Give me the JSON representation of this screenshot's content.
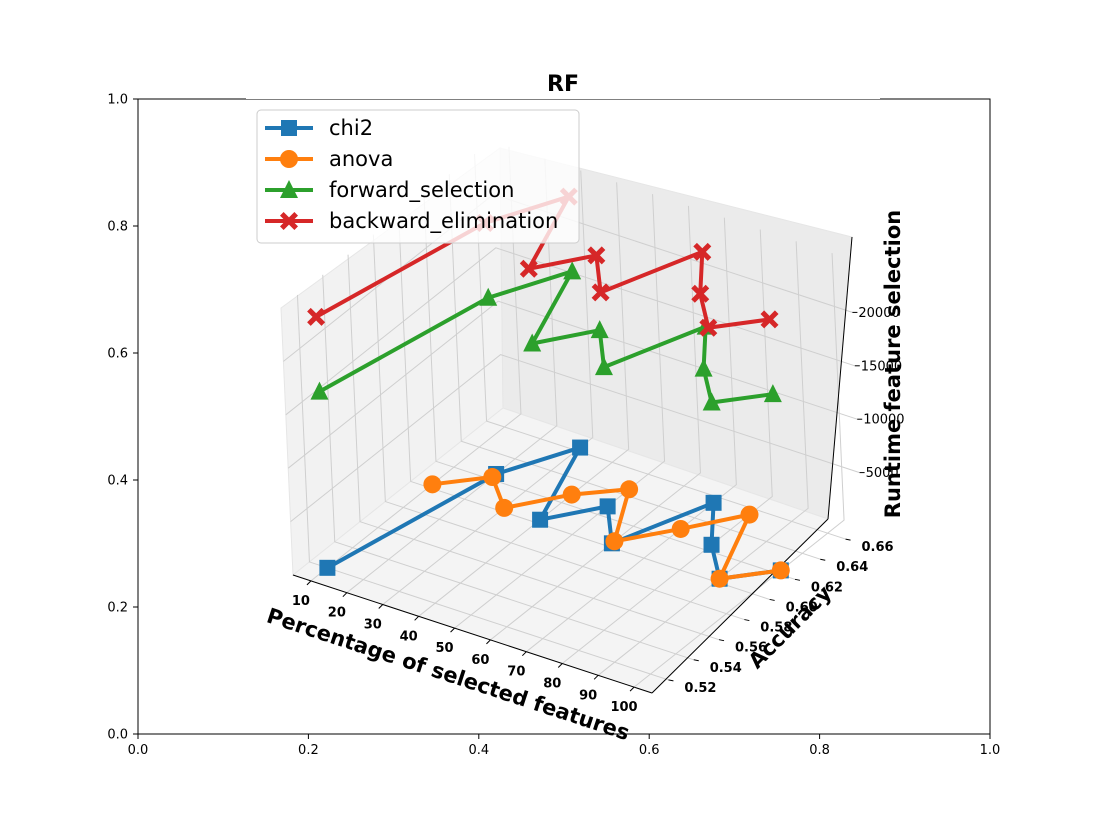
{
  "chart_data": {
    "type": "line3d",
    "title": "RF",
    "xlabel": "Percentage of selected features",
    "ylabel": "Accuracy",
    "zlabel": "Runtime feature selection",
    "x_ticks": [
      "10",
      "20",
      "30",
      "40",
      "50",
      "60",
      "70",
      "80",
      "90",
      "100"
    ],
    "y_ticks": [
      "0.52",
      "0.54",
      "0.56",
      "0.58",
      "0.60",
      "0.62",
      "0.64",
      "0.66"
    ],
    "z_ticks": [
      "5000",
      "10000",
      "15000",
      "20000"
    ],
    "outer_x_ticks": [
      "0.0",
      "0.2",
      "0.4",
      "0.6",
      "0.8",
      "1.0"
    ],
    "outer_y_ticks": [
      "0.0",
      "0.2",
      "0.4",
      "0.6",
      "0.8",
      "1.0"
    ],
    "legend_position": "upper-left",
    "grid": true,
    "series": [
      {
        "name": "chi2",
        "color": "#1f77b4",
        "marker": "square",
        "x": [
          10,
          20,
          30,
          40,
          50,
          60,
          70,
          80,
          90,
          100
        ],
        "y": [
          0.52,
          0.625,
          0.663,
          0.603,
          0.628,
          0.603,
          0.655,
          0.625,
          0.603,
          0.623
        ],
        "z": [
          0,
          0,
          0,
          0,
          0,
          0,
          0,
          0,
          0,
          0
        ]
      },
      {
        "name": "anova",
        "color": "#ff7f0e",
        "marker": "circle",
        "x": [
          10,
          20,
          30,
          40,
          50,
          60,
          70,
          80,
          90,
          100
        ],
        "y": [
          0.603,
          0.622,
          0.603,
          0.628,
          0.645,
          0.605,
          0.629,
          0.655,
          0.603,
          0.623
        ],
        "z": [
          0,
          0,
          0,
          0,
          0,
          0,
          0,
          0,
          0,
          0
        ]
      },
      {
        "name": "forward_selection",
        "color": "#2ca02c",
        "marker": "triangle",
        "x": [
          10,
          20,
          30,
          40,
          50,
          60,
          70,
          80,
          90,
          100
        ],
        "y": [
          0.52,
          0.625,
          0.663,
          0.603,
          0.628,
          0.603,
          0.655,
          0.625,
          0.603,
          0.623
        ],
        "z": [
          16500,
          16500,
          16500,
          16500,
          16500,
          16500,
          16500,
          16500,
          16500,
          16500
        ]
      },
      {
        "name": "backward_elimination",
        "color": "#d62728",
        "marker": "x",
        "x": [
          10,
          20,
          30,
          40,
          50,
          60,
          70,
          80,
          90,
          100
        ],
        "y": [
          0.52,
          0.625,
          0.663,
          0.603,
          0.628,
          0.603,
          0.655,
          0.625,
          0.603,
          0.623
        ],
        "z": [
          23500,
          23500,
          23500,
          23500,
          23500,
          23500,
          23500,
          23500,
          23500,
          23500
        ]
      }
    ]
  }
}
